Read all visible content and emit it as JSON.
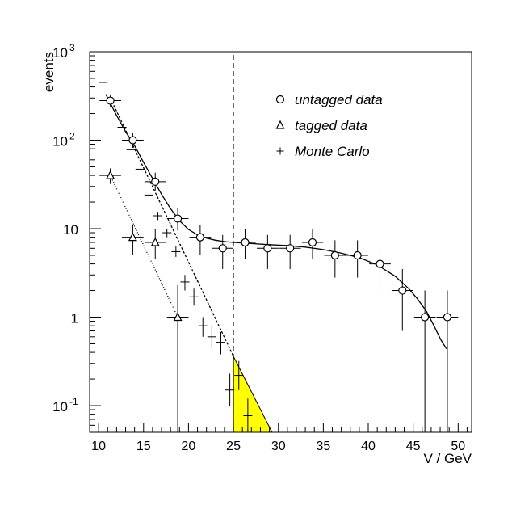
{
  "chart_data": {
    "type": "scatter",
    "x_axis": {
      "label": "V / GeV",
      "range": [
        9,
        51.5
      ],
      "ticks": [
        10,
        15,
        20,
        25,
        30,
        35,
        40,
        45,
        50
      ],
      "tick_labels": [
        "10",
        "15",
        "20",
        "25",
        "30",
        "35",
        "40",
        "45",
        "50"
      ]
    },
    "y_axis": {
      "label": "events",
      "scale": "log",
      "range": [
        0.05,
        1000
      ],
      "ticks": [
        {
          "value": 0.1,
          "base": "10",
          "exp": "-1"
        },
        {
          "value": 1,
          "base": "1",
          "exp": ""
        },
        {
          "value": 10,
          "base": "10",
          "exp": ""
        },
        {
          "value": 100,
          "base": "10",
          "exp": "2"
        },
        {
          "value": 1000,
          "base": "10",
          "exp": "3"
        }
      ]
    },
    "cut_line": {
      "x": 25,
      "style": "dashed"
    },
    "legend": {
      "position": "top-right",
      "items": [
        {
          "marker": "circle",
          "label": "untagged data"
        },
        {
          "marker": "triangle",
          "label": "tagged data"
        },
        {
          "marker": "cross",
          "label": "Monte Carlo"
        }
      ]
    },
    "series": [
      {
        "name": "untagged data",
        "marker": "circle",
        "points": [
          {
            "x": 11.3,
            "y": 280,
            "xerr": 1.2,
            "ylo": 240,
            "yhi": 320
          },
          {
            "x": 13.8,
            "y": 100,
            "xerr": 1.2,
            "ylo": 82,
            "yhi": 120
          },
          {
            "x": 16.3,
            "y": 34,
            "xerr": 1.2,
            "ylo": 27,
            "yhi": 43
          },
          {
            "x": 18.8,
            "y": 13,
            "xerr": 1.2,
            "ylo": 9.5,
            "yhi": 17
          },
          {
            "x": 21.3,
            "y": 8,
            "xerr": 1.2,
            "ylo": 5,
            "yhi": 11
          },
          {
            "x": 23.8,
            "y": 6,
            "xerr": 1.2,
            "ylo": 3.5,
            "yhi": 8.5
          },
          {
            "x": 26.3,
            "y": 7,
            "xerr": 1.2,
            "ylo": 4.5,
            "yhi": 10
          },
          {
            "x": 28.8,
            "y": 6,
            "xerr": 1.2,
            "ylo": 3.5,
            "yhi": 8.5
          },
          {
            "x": 31.3,
            "y": 6,
            "xerr": 1.2,
            "ylo": 3.5,
            "yhi": 8.5
          },
          {
            "x": 33.8,
            "y": 7,
            "xerr": 1.2,
            "ylo": 4.5,
            "yhi": 10
          },
          {
            "x": 36.3,
            "y": 5,
            "xerr": 1.2,
            "ylo": 2.8,
            "yhi": 7.4
          },
          {
            "x": 38.8,
            "y": 5,
            "xerr": 1.2,
            "ylo": 2.8,
            "yhi": 7.4
          },
          {
            "x": 41.3,
            "y": 4,
            "xerr": 1.2,
            "ylo": 2,
            "yhi": 6.2
          },
          {
            "x": 43.8,
            "y": 2,
            "xerr": 1.2,
            "ylo": 0.7,
            "yhi": 3.5
          },
          {
            "x": 46.3,
            "y": 1,
            "xerr": 1.2,
            "ylo": 0.05,
            "yhi": 2
          },
          {
            "x": 48.8,
            "y": 1,
            "xerr": 1.2,
            "ylo": 0.05,
            "yhi": 2
          }
        ]
      },
      {
        "name": "tagged data",
        "marker": "triangle",
        "points": [
          {
            "x": 11.3,
            "y": 40,
            "xerr": 1.2,
            "ylo": 32,
            "yhi": 48
          },
          {
            "x": 13.8,
            "y": 8,
            "xerr": 1.2,
            "ylo": 5,
            "yhi": 11
          },
          {
            "x": 16.3,
            "y": 7,
            "xerr": 1.2,
            "ylo": 4.5,
            "yhi": 10
          },
          {
            "x": 18.8,
            "y": 1,
            "xerr": 1.2,
            "ylo": 0.05,
            "yhi": 2.3
          }
        ]
      },
      {
        "name": "Monte Carlo",
        "marker": "cross",
        "points": [
          {
            "x": 10.5,
            "y": 450,
            "xerr": 0.5,
            "ylo": 450,
            "yhi": 450
          },
          {
            "x": 12.6,
            "y": 140,
            "xerr": 0.5,
            "ylo": 140,
            "yhi": 140
          },
          {
            "x": 13.6,
            "y": 78,
            "xerr": 0.5,
            "ylo": 78,
            "yhi": 78
          },
          {
            "x": 14.6,
            "y": 47,
            "xerr": 0.5,
            "ylo": 47,
            "yhi": 47
          },
          {
            "x": 15.6,
            "y": 24,
            "xerr": 0.5,
            "ylo": 24,
            "yhi": 24
          },
          {
            "x": 16.6,
            "y": 14,
            "xerr": 0.5,
            "ylo": 12.5,
            "yhi": 15.5
          },
          {
            "x": 17.6,
            "y": 9,
            "xerr": 0.5,
            "ylo": 8,
            "yhi": 10
          },
          {
            "x": 18.6,
            "y": 5.5,
            "xerr": 0.5,
            "ylo": 4.8,
            "yhi": 6.3
          },
          {
            "x": 19.6,
            "y": 2.5,
            "xerr": 0.5,
            "ylo": 2,
            "yhi": 3
          },
          {
            "x": 20.6,
            "y": 1.7,
            "xerr": 0.5,
            "ylo": 1.35,
            "yhi": 2.1
          },
          {
            "x": 21.6,
            "y": 0.8,
            "xerr": 0.5,
            "ylo": 0.6,
            "yhi": 1.0
          },
          {
            "x": 22.6,
            "y": 0.6,
            "xerr": 0.5,
            "ylo": 0.45,
            "yhi": 0.78
          },
          {
            "x": 23.6,
            "y": 0.52,
            "xerr": 0.5,
            "ylo": 0.38,
            "yhi": 0.68
          },
          {
            "x": 24.6,
            "y": 0.15,
            "xerr": 0.5,
            "ylo": 0.1,
            "yhi": 0.23
          },
          {
            "x": 25.6,
            "y": 0.22,
            "xerr": 0.5,
            "ylo": 0.15,
            "yhi": 0.32
          },
          {
            "x": 26.6,
            "y": 0.077,
            "xerr": 0.5,
            "ylo": 0.05,
            "yhi": 0.12
          }
        ]
      }
    ],
    "fit_curve": {
      "name": "fit",
      "style": "solid",
      "points": [
        [
          10.8,
          330
        ],
        [
          12,
          190
        ],
        [
          13,
          125
        ],
        [
          14,
          87
        ],
        [
          15,
          56
        ],
        [
          16,
          37
        ],
        [
          17,
          24.5
        ],
        [
          18,
          16.8
        ],
        [
          19,
          12.3
        ],
        [
          20,
          9.8
        ],
        [
          21,
          8.5
        ],
        [
          22,
          7.8
        ],
        [
          23,
          7.4
        ],
        [
          24,
          7.15
        ],
        [
          25,
          7.0
        ],
        [
          27,
          6.8
        ],
        [
          29,
          6.6
        ],
        [
          31,
          6.45
        ],
        [
          33,
          6.2
        ],
        [
          35,
          5.8
        ],
        [
          37,
          5.3
        ],
        [
          39,
          4.7
        ],
        [
          41,
          3.9
        ],
        [
          43,
          2.9
        ],
        [
          44.5,
          2.1
        ],
        [
          45.5,
          1.6
        ],
        [
          46.5,
          1.15
        ],
        [
          47.3,
          0.8
        ],
        [
          48.1,
          0.55
        ],
        [
          48.7,
          0.44
        ]
      ]
    },
    "exp_untagged": {
      "name": "untagged exponential fit",
      "style": "dashed",
      "points": [
        [
          11.3,
          300
        ],
        [
          25,
          0.36
        ]
      ]
    },
    "exp_tagged": {
      "name": "tagged exponential fit",
      "style": "dotted",
      "points": [
        [
          11.3,
          40
        ],
        [
          18.8,
          1
        ]
      ]
    },
    "shaded_region": {
      "color": "#ffff00",
      "points": [
        [
          25,
          0.36
        ],
        [
          29.3,
          0.05
        ],
        [
          25,
          0.05
        ]
      ]
    }
  }
}
